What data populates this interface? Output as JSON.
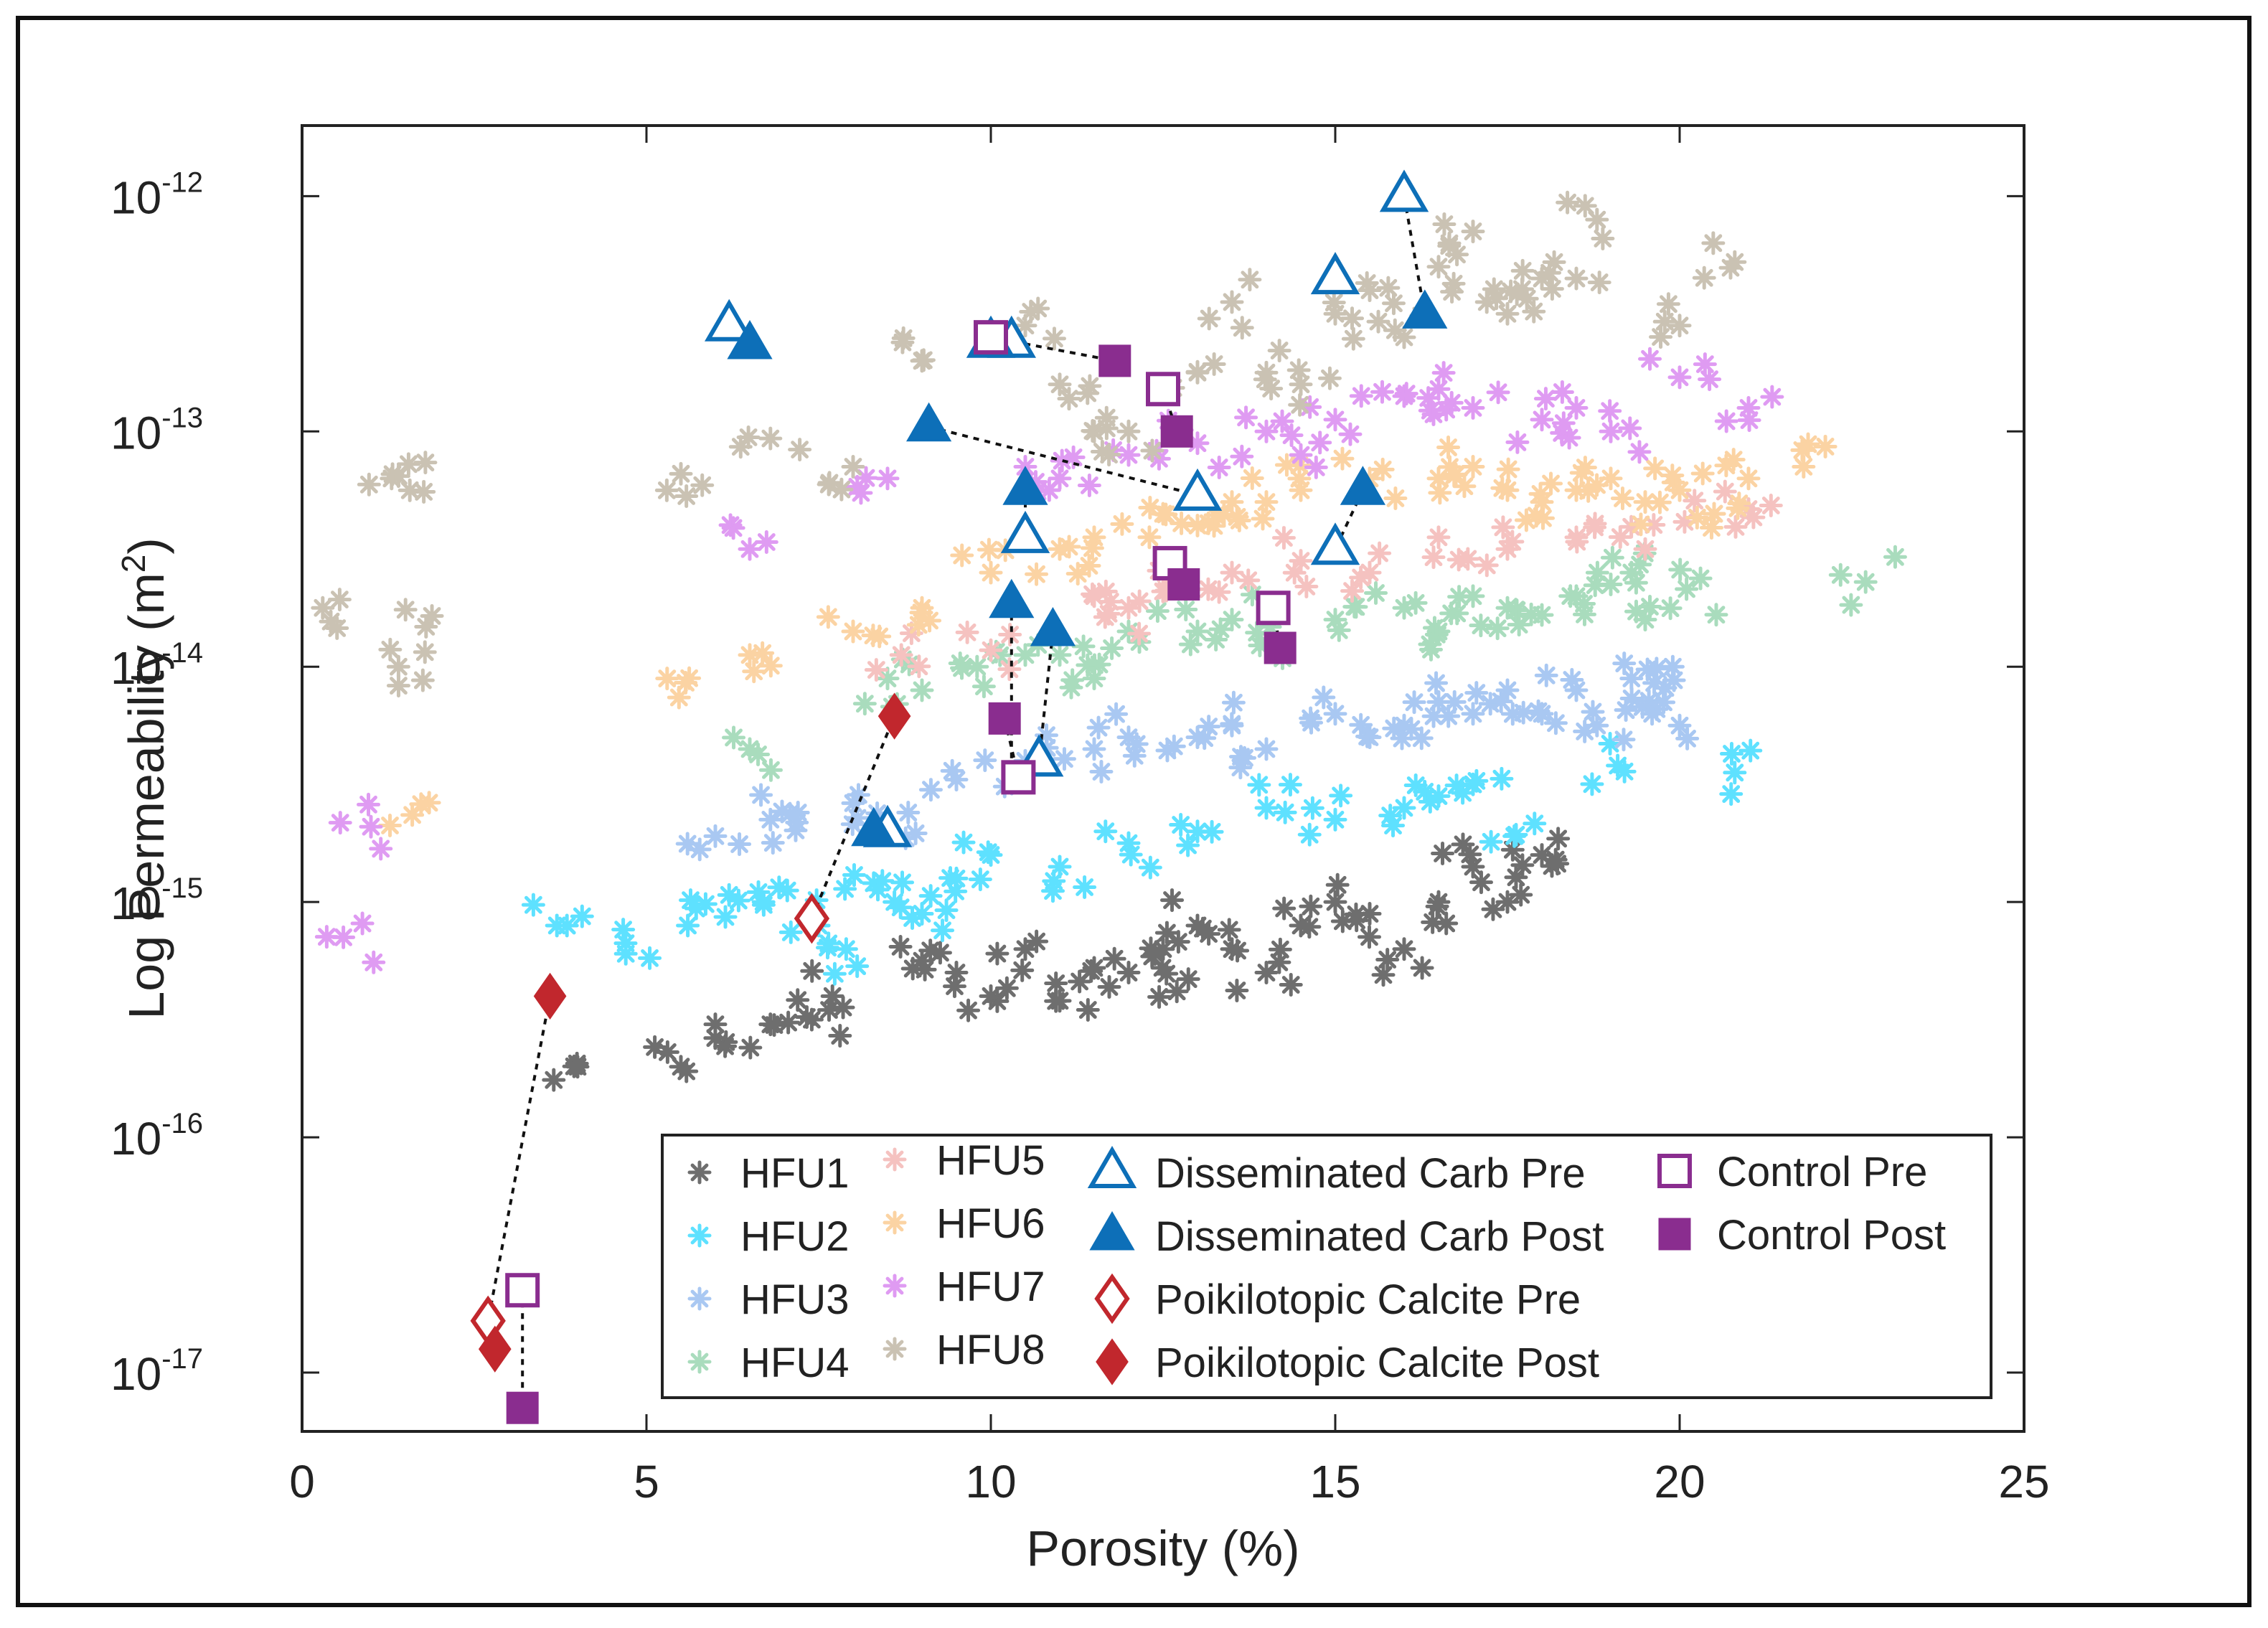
{
  "chart_data": {
    "type": "scatter",
    "title": "",
    "xlabel": "Porosity (%)",
    "ylabel": "Log Permeability (m²)",
    "ylabel_parts": {
      "text": "Log Permeability (m",
      "sup": "2",
      "close": ")"
    },
    "xscale": "linear",
    "yscale": "log",
    "xlim": [
      0,
      25
    ],
    "ylim_exp": [
      -17.25,
      -11.7
    ],
    "xticks": [
      "0",
      "5",
      "10",
      "15",
      "20",
      "25"
    ],
    "yticks": [
      {
        "base": "10",
        "exp": "-12",
        "value_exp": -12
      },
      {
        "base": "10",
        "exp": "-13",
        "value_exp": -13
      },
      {
        "base": "10",
        "exp": "-14",
        "value_exp": -14
      },
      {
        "base": "10",
        "exp": "-15",
        "value_exp": -15
      },
      {
        "base": "10",
        "exp": "-16",
        "value_exp": -16
      },
      {
        "base": "10",
        "exp": "-17",
        "value_exp": -17
      }
    ],
    "legend_position": "bottom-right",
    "hfu_series": [
      {
        "name": "HFU1",
        "color": "#6e6e6e",
        "points": [
          [
            4.0,
            -15.7
          ],
          [
            5.5,
            -15.7
          ],
          [
            6.0,
            -15.52
          ],
          [
            6.8,
            -15.52
          ],
          [
            7.4,
            -15.5
          ],
          [
            7.7,
            -15.4
          ],
          [
            9.0,
            -15.25
          ],
          [
            9.5,
            -15.3
          ],
          [
            10.0,
            -15.4
          ],
          [
            10.5,
            -15.2
          ],
          [
            11.0,
            -15.42
          ],
          [
            11.5,
            -15.28
          ],
          [
            12.0,
            -15.3
          ],
          [
            12.5,
            -15.2
          ],
          [
            12.7,
            -15.38
          ],
          [
            13.0,
            -15.1
          ],
          [
            13.5,
            -15.2
          ],
          [
            14.0,
            -15.3
          ],
          [
            14.5,
            -15.1
          ],
          [
            15.0,
            -15.0
          ],
          [
            15.5,
            -15.05
          ],
          [
            16.0,
            -15.2
          ],
          [
            16.5,
            -15.0
          ],
          [
            17.0,
            -14.85
          ],
          [
            17.5,
            -15.0
          ],
          [
            18.0,
            -14.8
          ],
          [
            18.2,
            -14.82
          ]
        ]
      },
      {
        "name": "HFU2",
        "color": "#5ee1ff",
        "points": [
          [
            3.7,
            -15.1
          ],
          [
            4.7,
            -15.22
          ],
          [
            5.6,
            -15.1
          ],
          [
            6.2,
            -14.97
          ],
          [
            6.7,
            -15.0
          ],
          [
            7.5,
            -15.1
          ],
          [
            7.9,
            -15.2
          ],
          [
            8.3,
            -14.92
          ],
          [
            8.6,
            -15.0
          ],
          [
            9.0,
            -15.05
          ],
          [
            9.5,
            -14.9
          ],
          [
            10.0,
            -14.8
          ],
          [
            11.0,
            -14.85
          ],
          [
            12.0,
            -14.75
          ],
          [
            13.0,
            -14.7
          ],
          [
            14.0,
            -14.6
          ],
          [
            15.0,
            -14.65
          ],
          [
            16.0,
            -14.6
          ],
          [
            16.5,
            -14.55
          ],
          [
            17.0,
            -14.5
          ],
          [
            17.6,
            -14.72
          ],
          [
            19.1,
            -14.42
          ],
          [
            20.8,
            -14.45
          ]
        ]
      },
      {
        "name": "HFU3",
        "color": "#a9c8f2",
        "points": [
          [
            6.0,
            -14.72
          ],
          [
            6.8,
            -14.65
          ],
          [
            7.2,
            -14.62
          ],
          [
            8.0,
            -14.58
          ],
          [
            8.8,
            -14.62
          ],
          [
            9.5,
            -14.48
          ],
          [
            10.5,
            -14.4
          ],
          [
            11.5,
            -14.35
          ],
          [
            12.0,
            -14.3
          ],
          [
            13.0,
            -14.3
          ],
          [
            13.5,
            -14.25
          ],
          [
            14.0,
            -14.35
          ],
          [
            15.0,
            -14.2
          ],
          [
            15.5,
            -14.3
          ],
          [
            16.0,
            -14.25
          ],
          [
            16.5,
            -14.15
          ],
          [
            17.0,
            -14.2
          ],
          [
            17.5,
            -14.1
          ],
          [
            18.0,
            -14.2
          ],
          [
            18.5,
            -14.1
          ],
          [
            18.8,
            -14.25
          ],
          [
            19.3,
            -14.05
          ],
          [
            19.6,
            -14.2
          ],
          [
            19.9,
            -14.0
          ],
          [
            20.0,
            -14.25
          ]
        ]
      },
      {
        "name": "HFU4",
        "color": "#a9dcbd",
        "points": [
          [
            6.5,
            -14.35
          ],
          [
            8.5,
            -14.05
          ],
          [
            9.0,
            -14.1
          ],
          [
            9.8,
            -14.0
          ],
          [
            10.5,
            -13.95
          ],
          [
            11.0,
            -13.95
          ],
          [
            11.5,
            -14.05
          ],
          [
            12.0,
            -13.85
          ],
          [
            13.0,
            -13.85
          ],
          [
            13.5,
            -13.8
          ],
          [
            14.0,
            -13.9
          ],
          [
            15.0,
            -13.8
          ],
          [
            16.0,
            -13.75
          ],
          [
            16.5,
            -13.85
          ],
          [
            17.0,
            -13.7
          ],
          [
            17.5,
            -13.75
          ],
          [
            18.0,
            -13.78
          ],
          [
            18.5,
            -13.7
          ],
          [
            19.0,
            -13.65
          ],
          [
            19.3,
            -13.6
          ],
          [
            19.5,
            -13.8
          ],
          [
            20.1,
            -13.67
          ],
          [
            22.7,
            -13.64
          ]
        ]
      },
      {
        "name": "HFU5",
        "color": "#f5c2c0",
        "points": [
          [
            8.7,
            -13.95
          ],
          [
            10.0,
            -13.93
          ],
          [
            11.5,
            -13.7
          ],
          [
            12.0,
            -13.75
          ],
          [
            12.5,
            -13.68
          ],
          [
            13.5,
            -13.6
          ],
          [
            14.5,
            -13.55
          ],
          [
            15.5,
            -13.6
          ],
          [
            16.5,
            -13.45
          ],
          [
            17.5,
            -13.5
          ],
          [
            18.5,
            -13.45
          ],
          [
            19.5,
            -13.5
          ],
          [
            20.5,
            -13.35
          ],
          [
            21.0,
            -13.33
          ]
        ]
      },
      {
        "name": "HFU6",
        "color": "#fbd3a3",
        "points": [
          [
            1.6,
            -14.63
          ],
          [
            5.3,
            -14.05
          ],
          [
            6.5,
            -13.95
          ],
          [
            8.0,
            -13.85
          ],
          [
            9.0,
            -13.75
          ],
          [
            10.0,
            -13.6
          ],
          [
            11.0,
            -13.5
          ],
          [
            11.5,
            -13.45
          ],
          [
            12.5,
            -13.35
          ],
          [
            13.0,
            -13.4
          ],
          [
            13.5,
            -13.3
          ],
          [
            14.0,
            -13.3
          ],
          [
            14.5,
            -13.25
          ],
          [
            15.5,
            -13.2
          ],
          [
            16.5,
            -13.2
          ],
          [
            17.0,
            -13.15
          ],
          [
            17.5,
            -13.25
          ],
          [
            18.0,
            -13.3
          ],
          [
            18.5,
            -13.25
          ],
          [
            19.0,
            -13.2
          ],
          [
            19.5,
            -13.3
          ],
          [
            20.0,
            -13.25
          ],
          [
            20.5,
            -13.35
          ],
          [
            21.0,
            -13.2
          ],
          [
            21.8,
            -13.15
          ]
        ]
      },
      {
        "name": "HFU7",
        "color": "#df9bf2",
        "points": [
          [
            0.6,
            -15.15
          ],
          [
            1.0,
            -14.68
          ],
          [
            6.5,
            -13.5
          ],
          [
            8.5,
            -13.2
          ],
          [
            10.5,
            -13.15
          ],
          [
            11.0,
            -13.2
          ],
          [
            12.0,
            -13.1
          ],
          [
            13.0,
            -13.05
          ],
          [
            14.0,
            -13.0
          ],
          [
            14.5,
            -13.1
          ],
          [
            15.0,
            -12.95
          ],
          [
            16.0,
            -12.85
          ],
          [
            16.5,
            -12.82
          ],
          [
            17.0,
            -12.9
          ],
          [
            18.0,
            -12.95
          ],
          [
            18.5,
            -12.9
          ],
          [
            19.0,
            -13.0
          ],
          [
            20.0,
            -12.77
          ],
          [
            21.0,
            -12.9
          ]
        ]
      },
      {
        "name": "HFU8",
        "color": "#cac2b3",
        "points": [
          [
            0.3,
            -13.75
          ],
          [
            1.3,
            -13.2
          ],
          [
            1.4,
            -13.19
          ],
          [
            1.4,
            -14.0
          ],
          [
            1.8,
            -13.83
          ],
          [
            5.5,
            -13.18
          ],
          [
            6.8,
            -13.03
          ],
          [
            8.0,
            -13.15
          ],
          [
            9.0,
            -12.7
          ],
          [
            10.5,
            -12.55
          ],
          [
            11.0,
            -12.8
          ],
          [
            11.5,
            -13.0
          ],
          [
            12.0,
            -13.0
          ],
          [
            13.0,
            -12.75
          ],
          [
            13.5,
            -12.45
          ],
          [
            14.0,
            -12.75
          ],
          [
            14.5,
            -12.8
          ],
          [
            15.0,
            -12.5
          ],
          [
            15.5,
            -12.4
          ],
          [
            16.0,
            -12.6
          ],
          [
            16.5,
            -12.3
          ],
          [
            17.0,
            -12.15
          ],
          [
            17.2,
            -12.45
          ],
          [
            17.5,
            -12.5
          ],
          [
            18.0,
            -12.35
          ],
          [
            18.5,
            -12.35
          ],
          [
            18.8,
            -12.1
          ],
          [
            20.0,
            -12.55
          ],
          [
            20.8,
            -12.28
          ]
        ]
      }
    ],
    "treatment_series": [
      {
        "name": "Disseminated Carb Pre",
        "marker": "triangle-open",
        "color": "#0d6fb8",
        "points": [
          [
            6.2,
            -12.55
          ],
          [
            10.3,
            -12.62
          ],
          [
            10.0,
            -12.62
          ],
          [
            10.5,
            -13.45
          ],
          [
            10.7,
            -14.4
          ],
          [
            8.5,
            -14.7
          ],
          [
            13.0,
            -13.27
          ],
          [
            15.0,
            -13.5
          ],
          [
            15.0,
            -12.35
          ],
          [
            16.0,
            -12.0
          ]
        ]
      },
      {
        "name": "Disseminated Carb Post",
        "marker": "triangle-filled",
        "color": "#0d6fb8",
        "points": [
          [
            6.5,
            -12.63
          ],
          [
            9.1,
            -12.98
          ],
          [
            10.5,
            -13.25
          ],
          [
            10.3,
            -13.73
          ],
          [
            10.9,
            -13.85
          ],
          [
            8.3,
            -14.7
          ],
          [
            15.4,
            -13.25
          ],
          [
            16.3,
            -12.5
          ]
        ]
      },
      {
        "name": "Poikilotopic Calcite Pre",
        "marker": "diamond-open",
        "color": "#c1272d",
        "points": [
          [
            7.4,
            -15.07
          ],
          [
            2.7,
            -16.78
          ]
        ]
      },
      {
        "name": "Poikilotopic Calcite Post",
        "marker": "diamond-filled",
        "color": "#c1272d",
        "points": [
          [
            8.6,
            -14.21
          ],
          [
            3.6,
            -15.4
          ],
          [
            2.8,
            -16.9
          ]
        ]
      },
      {
        "name": "Control Pre",
        "marker": "square-open",
        "color": "#8a2d8f",
        "points": [
          [
            10.0,
            -12.6
          ],
          [
            12.5,
            -12.82
          ],
          [
            12.6,
            -13.56
          ],
          [
            14.1,
            -13.75
          ],
          [
            10.4,
            -14.47
          ],
          [
            3.2,
            -16.65
          ]
        ]
      },
      {
        "name": "Control Post",
        "marker": "square-filled",
        "color": "#8a2d8f",
        "points": [
          [
            11.8,
            -12.7
          ],
          [
            12.7,
            -13.0
          ],
          [
            12.8,
            -13.65
          ],
          [
            14.2,
            -13.92
          ],
          [
            10.2,
            -14.22
          ],
          [
            3.2,
            -17.15
          ]
        ]
      }
    ],
    "connectors": [
      [
        [
          6.2,
          -12.55
        ],
        [
          6.5,
          -12.63
        ]
      ],
      [
        [
          10.0,
          -12.6
        ],
        [
          11.8,
          -12.7
        ]
      ],
      [
        [
          12.5,
          -12.82
        ],
        [
          12.7,
          -13.0
        ]
      ],
      [
        [
          9.1,
          -12.98
        ],
        [
          13.0,
          -13.27
        ]
      ],
      [
        [
          10.5,
          -13.25
        ],
        [
          10.5,
          -13.45
        ]
      ],
      [
        [
          15.4,
          -13.25
        ],
        [
          15.0,
          -13.5
        ]
      ],
      [
        [
          12.6,
          -13.56
        ],
        [
          12.8,
          -13.65
        ]
      ],
      [
        [
          14.1,
          -13.75
        ],
        [
          14.2,
          -13.92
        ]
      ],
      [
        [
          16.0,
          -12.0
        ],
        [
          16.3,
          -12.5
        ]
      ],
      [
        [
          10.3,
          -13.73
        ],
        [
          10.3,
          -14.47
        ]
      ],
      [
        [
          10.9,
          -13.85
        ],
        [
          10.7,
          -14.4
        ]
      ],
      [
        [
          10.2,
          -14.22
        ],
        [
          10.4,
          -14.47
        ]
      ],
      [
        [
          8.5,
          -14.7
        ],
        [
          8.3,
          -14.7
        ]
      ],
      [
        [
          7.4,
          -15.07
        ],
        [
          8.6,
          -14.21
        ]
      ],
      [
        [
          3.6,
          -15.4
        ],
        [
          2.7,
          -16.78
        ]
      ],
      [
        [
          2.7,
          -16.78
        ],
        [
          2.8,
          -16.9
        ]
      ],
      [
        [
          3.2,
          -16.65
        ],
        [
          3.2,
          -17.15
        ]
      ]
    ],
    "legend": {
      "col1": [
        {
          "label": "HFU1",
          "series": "HFU1"
        },
        {
          "label": "HFU2",
          "series": "HFU2"
        },
        {
          "label": "HFU3",
          "series": "HFU3"
        },
        {
          "label": "HFU4",
          "series": "HFU4"
        }
      ],
      "col2": [
        {
          "label": "HFU5",
          "series": "HFU5"
        },
        {
          "label": "HFU6",
          "series": "HFU6"
        },
        {
          "label": "HFU7",
          "series": "HFU7"
        },
        {
          "label": "HFU8",
          "series": "HFU8"
        }
      ],
      "col3": [
        {
          "label": "Disseminated Carb Pre",
          "series": "Disseminated Carb Pre"
        },
        {
          "label": "Disseminated Carb Post",
          "series": "Disseminated Carb Post"
        },
        {
          "label": "Poikilotopic Calcite Pre",
          "series": "Poikilotopic Calcite Pre"
        },
        {
          "label": "Poikilotopic Calcite Post",
          "series": "Poikilotopic Calcite Post"
        }
      ],
      "col4": [
        {
          "label": "Control Pre",
          "series": "Control Pre"
        },
        {
          "label": "Control Post",
          "series": "Control Post"
        }
      ]
    }
  }
}
